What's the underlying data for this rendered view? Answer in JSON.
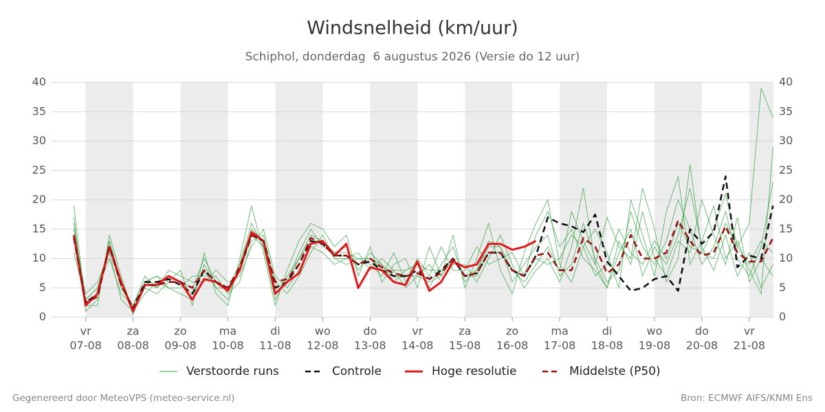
{
  "chart_data": {
    "type": "line",
    "title": "Windsnelheid (km/uur)",
    "subtitle": "Schiphol, donderdag  6 augustus 2026 (Versie do 12 uur)",
    "footer_left": "Gegenereerd door MeteoVPS (meteo-service.nl)",
    "footer_right": "Bron: ECMWF AIFS/KNMI Ens",
    "x": [
      -0.25,
      0,
      0.25,
      0.5,
      0.75,
      1,
      1.25,
      1.5,
      1.75,
      2,
      2.25,
      2.5,
      2.75,
      3,
      3.25,
      3.5,
      3.75,
      4,
      4.25,
      4.5,
      4.75,
      5,
      5.25,
      5.5,
      5.75,
      6,
      6.25,
      6.5,
      6.75,
      7,
      7.25,
      7.5,
      7.75,
      8,
      8.25,
      8.5,
      8.75,
      9,
      9.25,
      9.5,
      9.75,
      10,
      10.25,
      10.5,
      10.75,
      11,
      11.25,
      11.5,
      11.75,
      12,
      12.25,
      12.5,
      12.75,
      13,
      13.25,
      13.5,
      13.75,
      14,
      14.25,
      14.5
    ],
    "xlim": [
      -0.72,
      14.51
    ],
    "xticks": [
      {
        "value": 0,
        "label": "vr",
        "date": "07-08"
      },
      {
        "value": 1,
        "label": "za",
        "date": "08-08"
      },
      {
        "value": 2,
        "label": "zo",
        "date": "09-08"
      },
      {
        "value": 3,
        "label": "ma",
        "date": "10-08"
      },
      {
        "value": 4,
        "label": "di",
        "date": "11-08"
      },
      {
        "value": 5,
        "label": "wo",
        "date": "12-08"
      },
      {
        "value": 6,
        "label": "do",
        "date": "13-08"
      },
      {
        "value": 7,
        "label": "vr",
        "date": "14-08"
      },
      {
        "value": 8,
        "label": "za",
        "date": "15-08"
      },
      {
        "value": 9,
        "label": "zo",
        "date": "16-08"
      },
      {
        "value": 10,
        "label": "ma",
        "date": "17-08"
      },
      {
        "value": 11,
        "label": "di",
        "date": "18-08"
      },
      {
        "value": 12,
        "label": "wo",
        "date": "19-08"
      },
      {
        "value": 13,
        "label": "do",
        "date": "20-08"
      },
      {
        "value": 14,
        "label": "vr",
        "date": "21-08"
      }
    ],
    "ylim": [
      0,
      40
    ],
    "yticks": [
      0,
      5,
      10,
      15,
      20,
      25,
      30,
      35,
      40
    ],
    "y2lim": [
      0,
      40
    ],
    "y2ticks": [
      0,
      5,
      10,
      15,
      20,
      25,
      30,
      35,
      40
    ],
    "grid": true,
    "legend": "bottom",
    "series": [
      {
        "name": "Verstoorde runs",
        "color": "#2e9e3e",
        "runs": [
          [
            17,
            1,
            3,
            13,
            6,
            0.5,
            6,
            7,
            5,
            4,
            3,
            9,
            5,
            3,
            9,
            16,
            12,
            3,
            7,
            10,
            14,
            13,
            11,
            12,
            8,
            11,
            9,
            6,
            8,
            9,
            5,
            9,
            12,
            6,
            8,
            13,
            12,
            6,
            9,
            12,
            14,
            7,
            9,
            16,
            10,
            6,
            8,
            18,
            12,
            9,
            13,
            20,
            15,
            9,
            12,
            18,
            10,
            7,
            12,
            23
          ],
          [
            11,
            3,
            5,
            10,
            4,
            2,
            7,
            5,
            8,
            7,
            6,
            6,
            8,
            6,
            7,
            12,
            15,
            7,
            5,
            8,
            12,
            11,
            9,
            10,
            11,
            8,
            10,
            8,
            5,
            7,
            9,
            6,
            9,
            9,
            6,
            10,
            14,
            9,
            5,
            8,
            10,
            6,
            12,
            22,
            9,
            5,
            11,
            15,
            7,
            12,
            9,
            14,
            22,
            12,
            8,
            14,
            7,
            11,
            5,
            9
          ],
          [
            16,
            2,
            2,
            14,
            7,
            1,
            5,
            4,
            6,
            8,
            2,
            11,
            4,
            2,
            10,
            19,
            11,
            2,
            8,
            13,
            16,
            15,
            12,
            14,
            7,
            12,
            6,
            9,
            10,
            5,
            12,
            7,
            14,
            5,
            10,
            16,
            8,
            4,
            11,
            16,
            20,
            9,
            6,
            12,
            15,
            11,
            5,
            20,
            14,
            7,
            18,
            24,
            9,
            13,
            19,
            10,
            13,
            8,
            4,
            29
          ],
          [
            15,
            4,
            6,
            11,
            3,
            1,
            4,
            6,
            5,
            5,
            7,
            7,
            7,
            4,
            6,
            13,
            14,
            6,
            4,
            7,
            11,
            14,
            10,
            9,
            10,
            9,
            7,
            11,
            6,
            10,
            7,
            12,
            8,
            8,
            12,
            9,
            10,
            11,
            7,
            14,
            18,
            12,
            15,
            10,
            8,
            5,
            13,
            9,
            18,
            10,
            7,
            13,
            11,
            20,
            14,
            9,
            17,
            6,
            10,
            7
          ],
          [
            19,
            2,
            4,
            13,
            6,
            0.5,
            6,
            5,
            7,
            6,
            5,
            10,
            6,
            5,
            9,
            15,
            13,
            5,
            6,
            11,
            15,
            12,
            11,
            11,
            10,
            10,
            8,
            8,
            8,
            9,
            8,
            8,
            10,
            7,
            8,
            12,
            12,
            8,
            6,
            9,
            12,
            8,
            18,
            13,
            9,
            17,
            12,
            10,
            22,
            15,
            6,
            10,
            26,
            11,
            15,
            21,
            12,
            16,
            39,
            34
          ],
          [
            14,
            3,
            5,
            12,
            5,
            2,
            6,
            7,
            6,
            6,
            4,
            8,
            5,
            5,
            8,
            14,
            12,
            4,
            6,
            10,
            13,
            13,
            10,
            10,
            9,
            10,
            9,
            7,
            7,
            7,
            6,
            7,
            10,
            7,
            7,
            11,
            11,
            8,
            7,
            10,
            9,
            10,
            14,
            12,
            7,
            9,
            15,
            11,
            9,
            13,
            10,
            16,
            12,
            11,
            10,
            16,
            12,
            9,
            13,
            11
          ]
        ]
      },
      {
        "name": "Controle",
        "color": "#111111",
        "dashed": true,
        "values": [
          14,
          2.5,
          4,
          12,
          5.5,
          1.5,
          6,
          6,
          6.5,
          5.5,
          4,
          8,
          6,
          5,
          8,
          14,
          13,
          5,
          6,
          9,
          13,
          12.5,
          10.5,
          10.5,
          9,
          9.5,
          8,
          7,
          7,
          8,
          6.5,
          8,
          10,
          7,
          7.5,
          11,
          11,
          8,
          7,
          10.5,
          17,
          16,
          15.5,
          14.5,
          17.5,
          9.5,
          7,
          4.5,
          5,
          6.5,
          7,
          4.5,
          15,
          12.5,
          14.5,
          24,
          8.5,
          10.5,
          10,
          19
        ]
      },
      {
        "name": "Hoge resolutie",
        "color": "#e3171b",
        "dashed": false,
        "values": [
          14,
          2,
          4,
          12,
          6,
          1,
          5.5,
          5.5,
          7,
          6,
          3,
          6.5,
          6,
          4.5,
          8,
          14.5,
          13,
          4,
          6,
          7.5,
          12.5,
          13,
          10.5,
          12.5,
          5,
          8.5,
          8,
          6,
          5.5,
          9.5,
          4.5,
          6,
          9.5,
          8.5,
          9,
          12.5,
          12.5,
          11.5,
          12,
          13,
          null,
          null,
          null,
          null,
          null,
          null,
          null,
          null,
          null,
          null,
          null,
          null,
          null,
          null,
          null,
          null,
          null,
          null,
          null,
          null
        ]
      },
      {
        "name": "Middelste (P50)",
        "color": "#9b1010",
        "dashed": true,
        "values": [
          13.5,
          2.5,
          3.5,
          12,
          5.5,
          1.5,
          5.5,
          5.5,
          6,
          6,
          5,
          8,
          6,
          5,
          8.5,
          14,
          13,
          6,
          6.5,
          9,
          13.5,
          12.5,
          10.5,
          10.5,
          9,
          10,
          8.5,
          7.5,
          7,
          7.5,
          6.5,
          7.5,
          10,
          7,
          7.5,
          11,
          11,
          8,
          7,
          10.5,
          11,
          8,
          8,
          13.5,
          12,
          7.5,
          9,
          14,
          10,
          10,
          11,
          16.5,
          13,
          10.5,
          11,
          15.5,
          11,
          9.5,
          9.5,
          13.5
        ]
      }
    ]
  }
}
